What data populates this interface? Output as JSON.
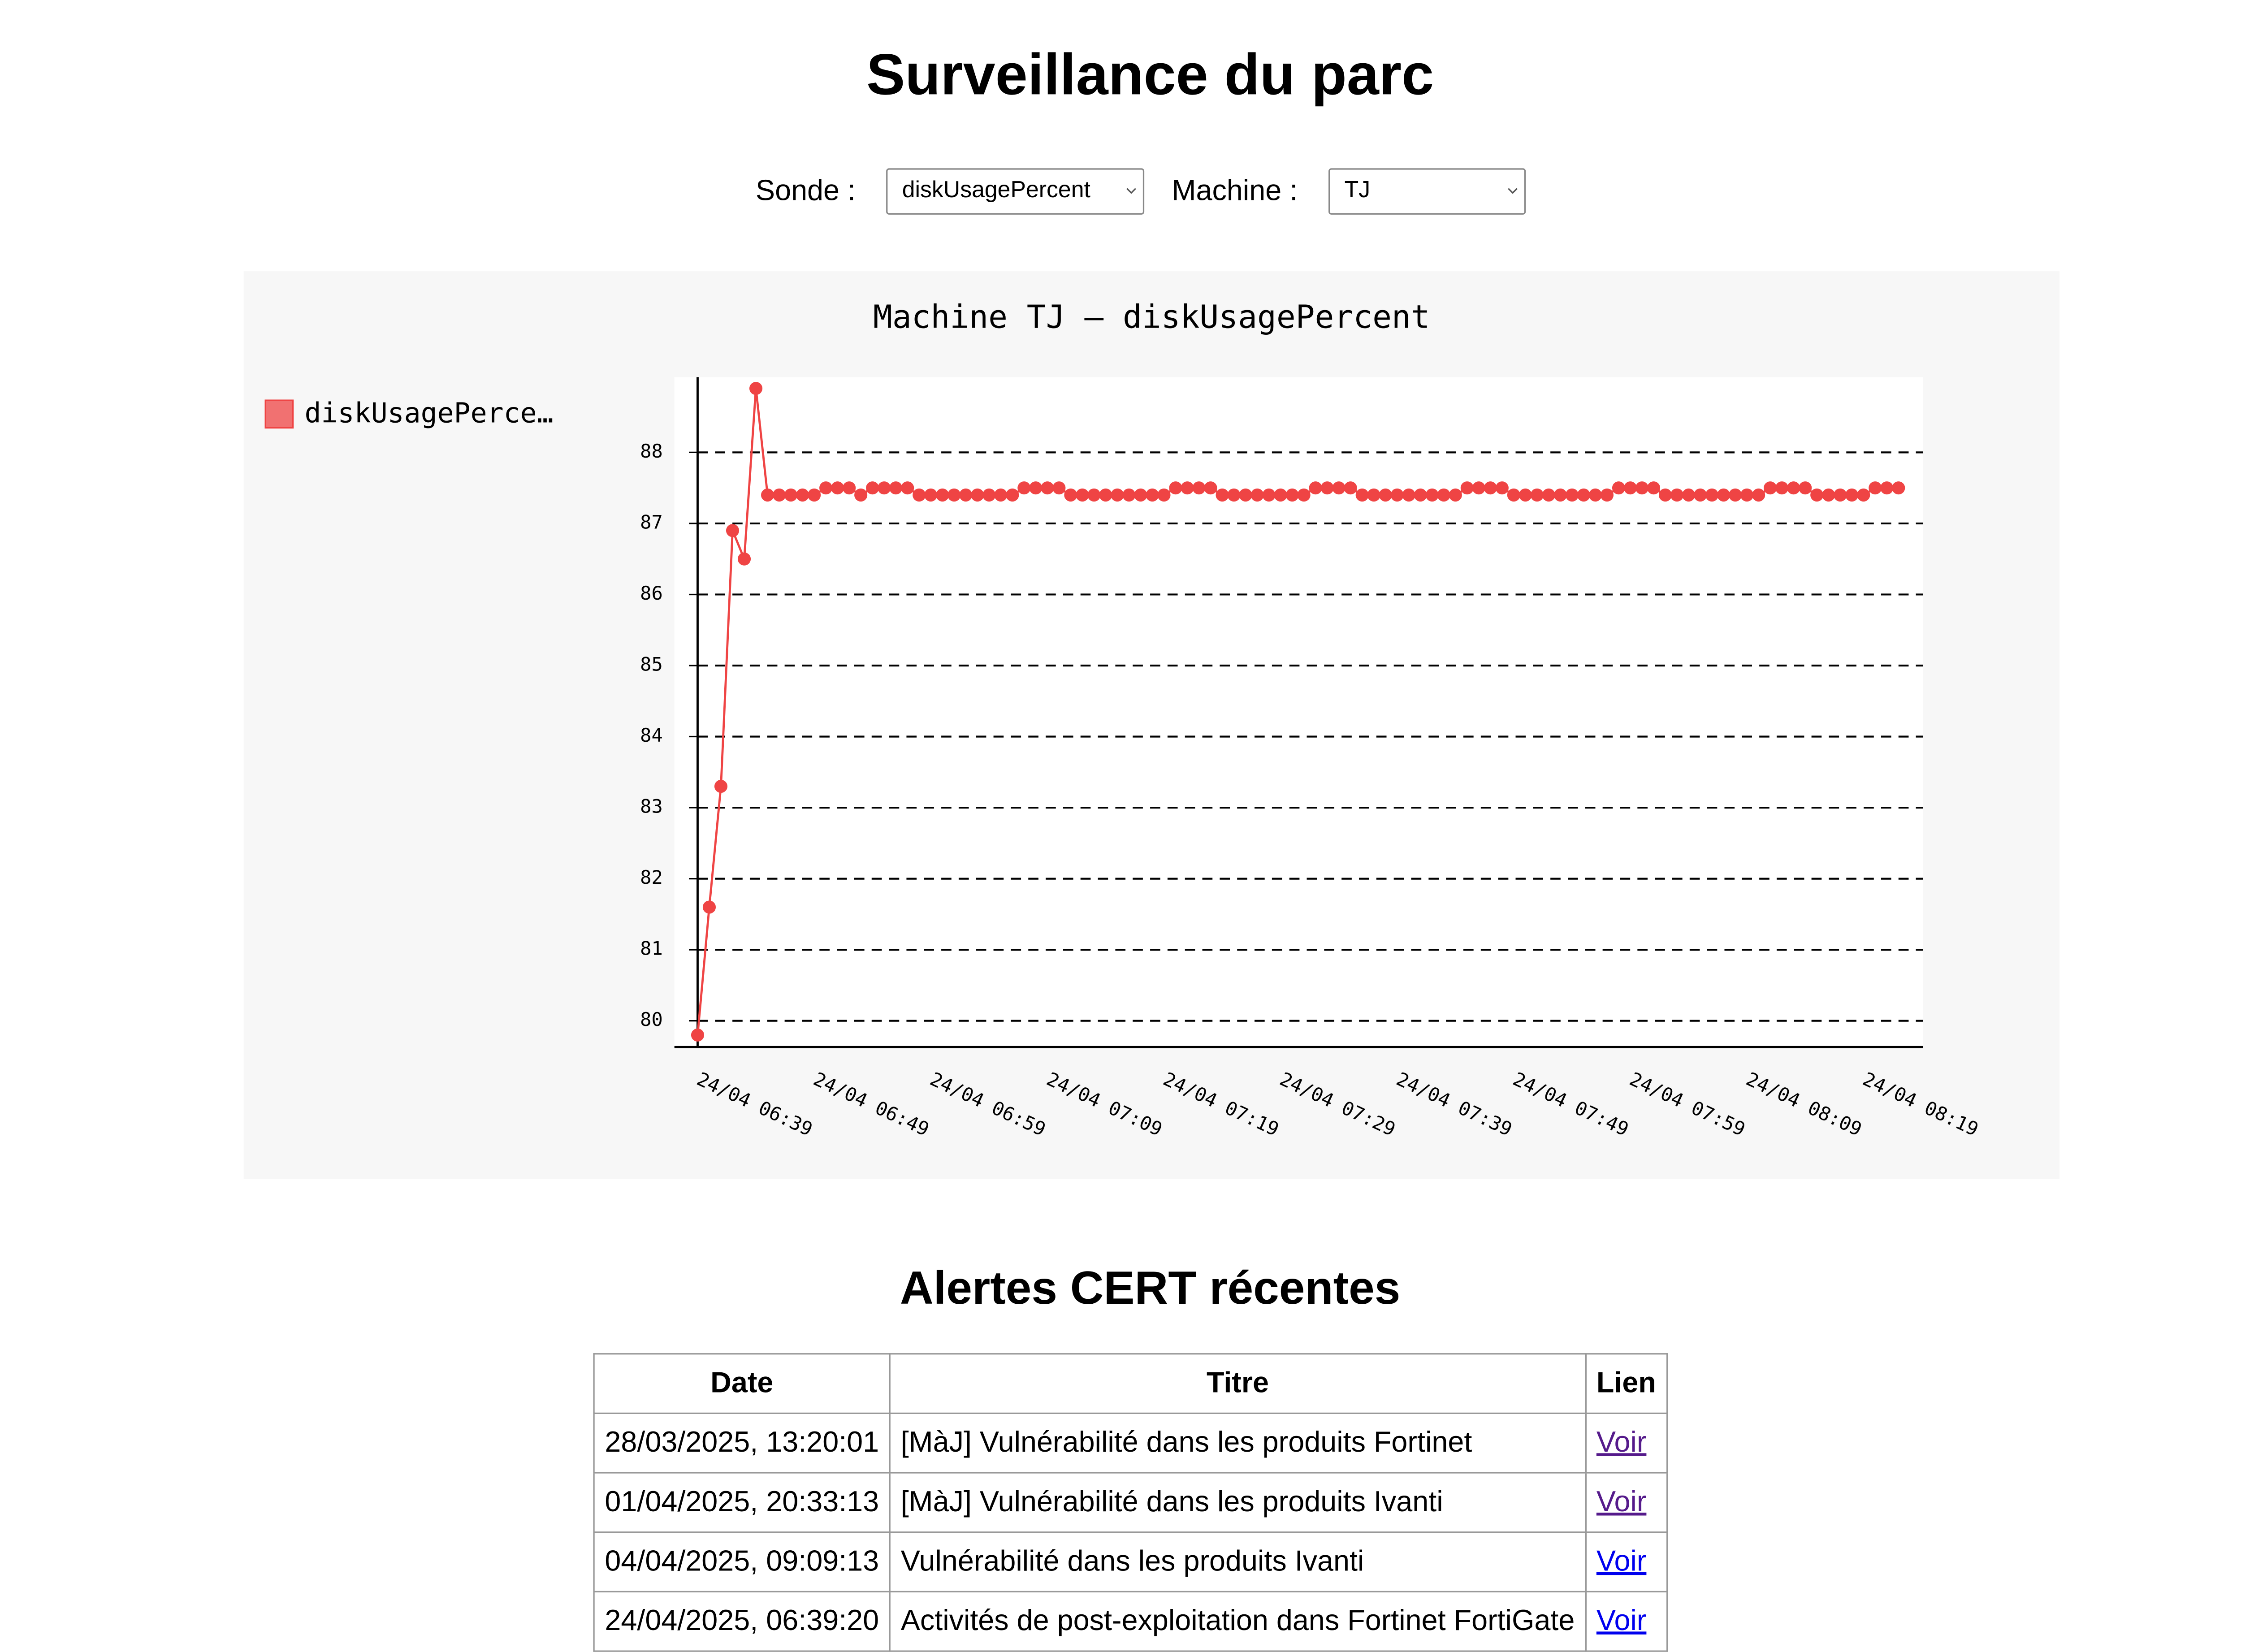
{
  "header": {
    "title": "Surveillance du parc"
  },
  "controls": [
    {
      "label": "Sonde :",
      "value": "diskUsagePercent"
    },
    {
      "label": "Machine :",
      "value": "TJ"
    }
  ],
  "chart_data": {
    "type": "line",
    "title": "Machine TJ – diskUsagePercent",
    "categories": [
      "24/04 06:39",
      null,
      null,
      null,
      null,
      null,
      null,
      null,
      null,
      null,
      "24/04 06:49",
      null,
      null,
      null,
      null,
      null,
      null,
      null,
      null,
      null,
      "24/04 06:59",
      null,
      null,
      null,
      null,
      null,
      null,
      null,
      null,
      null,
      "24/04 07:09",
      null,
      null,
      null,
      null,
      null,
      null,
      null,
      null,
      null,
      "24/04 07:19",
      null,
      null,
      null,
      null,
      null,
      null,
      null,
      null,
      null,
      "24/04 07:29",
      null,
      null,
      null,
      null,
      null,
      null,
      null,
      null,
      null,
      "24/04 07:39",
      null,
      null,
      null,
      null,
      null,
      null,
      null,
      null,
      null,
      "24/04 07:49",
      null,
      null,
      null,
      null,
      null,
      null,
      null,
      null,
      null,
      "24/04 07:59",
      null,
      null,
      null,
      null,
      null,
      null,
      null,
      null,
      null,
      "24/04 08:09",
      null,
      null,
      null,
      null,
      null,
      null,
      null,
      null,
      null,
      "24/04 08:19",
      null,
      null,
      null
    ],
    "series": [
      {
        "name": "diskUsagePerce…",
        "color": "#ef4444",
        "values": [
          79.8,
          81.6,
          83.3,
          86.9,
          86.5,
          88.9,
          87.4,
          87.4,
          87.4,
          87.4,
          87.4,
          87.5,
          87.5,
          87.5,
          87.4,
          87.5,
          87.5,
          87.5,
          87.5,
          87.4,
          87.4,
          87.4,
          87.4,
          87.4,
          87.4,
          87.4,
          87.4,
          87.4,
          87.5,
          87.5,
          87.5,
          87.5,
          87.4,
          87.4,
          87.4,
          87.4,
          87.4,
          87.4,
          87.4,
          87.4,
          87.4,
          87.5,
          87.5,
          87.5,
          87.5,
          87.4,
          87.4,
          87.4,
          87.4,
          87.4,
          87.4,
          87.4,
          87.4,
          87.5,
          87.5,
          87.5,
          87.5,
          87.4,
          87.4,
          87.4,
          87.4,
          87.4,
          87.4,
          87.4,
          87.4,
          87.4,
          87.5,
          87.5,
          87.5,
          87.5,
          87.4,
          87.4,
          87.4,
          87.4,
          87.4,
          87.4,
          87.4,
          87.4,
          87.4,
          87.5,
          87.5,
          87.5,
          87.5,
          87.4,
          87.4,
          87.4,
          87.4,
          87.4,
          87.4,
          87.4,
          87.4,
          87.4,
          87.5,
          87.5,
          87.5,
          87.5,
          87.4,
          87.4,
          87.4,
          87.4,
          87.4,
          87.5,
          87.5,
          87.5
        ]
      }
    ],
    "ylim": [
      79.63,
      89.06
    ],
    "yticks": [
      80,
      81,
      82,
      83,
      84,
      85,
      86,
      87,
      88
    ],
    "grid": true
  },
  "alerts": {
    "title": "Alertes CERT récentes",
    "columns": [
      "Date",
      "Titre",
      "Lien"
    ],
    "rows": [
      [
        "28/03/2025, 13:20:01",
        "[MàJ] Vulnérabilité dans les produits Fortinet",
        "Voir"
      ],
      [
        "01/04/2025, 20:33:13",
        "[MàJ] Vulnérabilité dans les produits Ivanti",
        "Voir"
      ],
      [
        "04/04/2025, 09:09:13",
        "Vulnérabilité dans les produits Ivanti",
        "Voir"
      ],
      [
        "24/04/2025, 06:39:20",
        "Activités de post-exploitation dans Fortinet FortiGate",
        "Voir"
      ]
    ]
  }
}
